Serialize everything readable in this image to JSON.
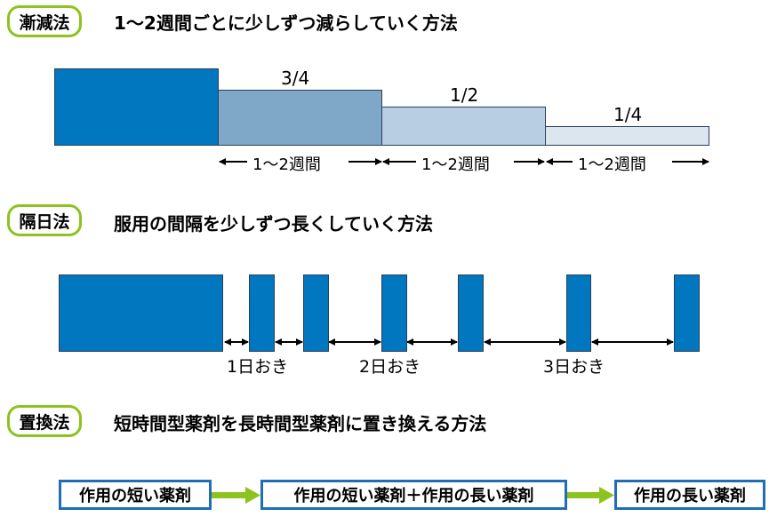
{
  "sections": [
    {
      "badge": "漸減法",
      "title": "1～2週間ごとに少しずつ減らしていく方法"
    },
    {
      "badge": "隔日法",
      "title": "服用の間隔を少しずつ長くしていく方法"
    },
    {
      "badge": "置換法",
      "title": "短時間型薬剤を長時間型薬剤に置き換える方法"
    }
  ],
  "taper": {
    "steps": [
      {
        "fraction": 1,
        "label": "",
        "color": "#0077be"
      },
      {
        "fraction": 0.75,
        "label": "3/4",
        "color": "#7fa7c7"
      },
      {
        "fraction": 0.5,
        "label": "1/2",
        "color": "#b8cee3"
      },
      {
        "fraction": 0.25,
        "label": "1/4",
        "color": "#dbe6ef"
      }
    ],
    "interval_labels": [
      "1～2週間",
      "1～2週間",
      "1～2週間"
    ]
  },
  "alternate": {
    "color": "#0077be",
    "interval_labels": [
      "1日おき",
      "2日おき",
      "3日おき"
    ]
  },
  "replacement": {
    "boxes": [
      "作用の短い薬剤",
      "作用の短い薬剤＋作用の長い薬剤",
      "作用の長い薬剤"
    ],
    "arrow_color": "#8dc21f",
    "border_color": "#1e6fb4"
  }
}
